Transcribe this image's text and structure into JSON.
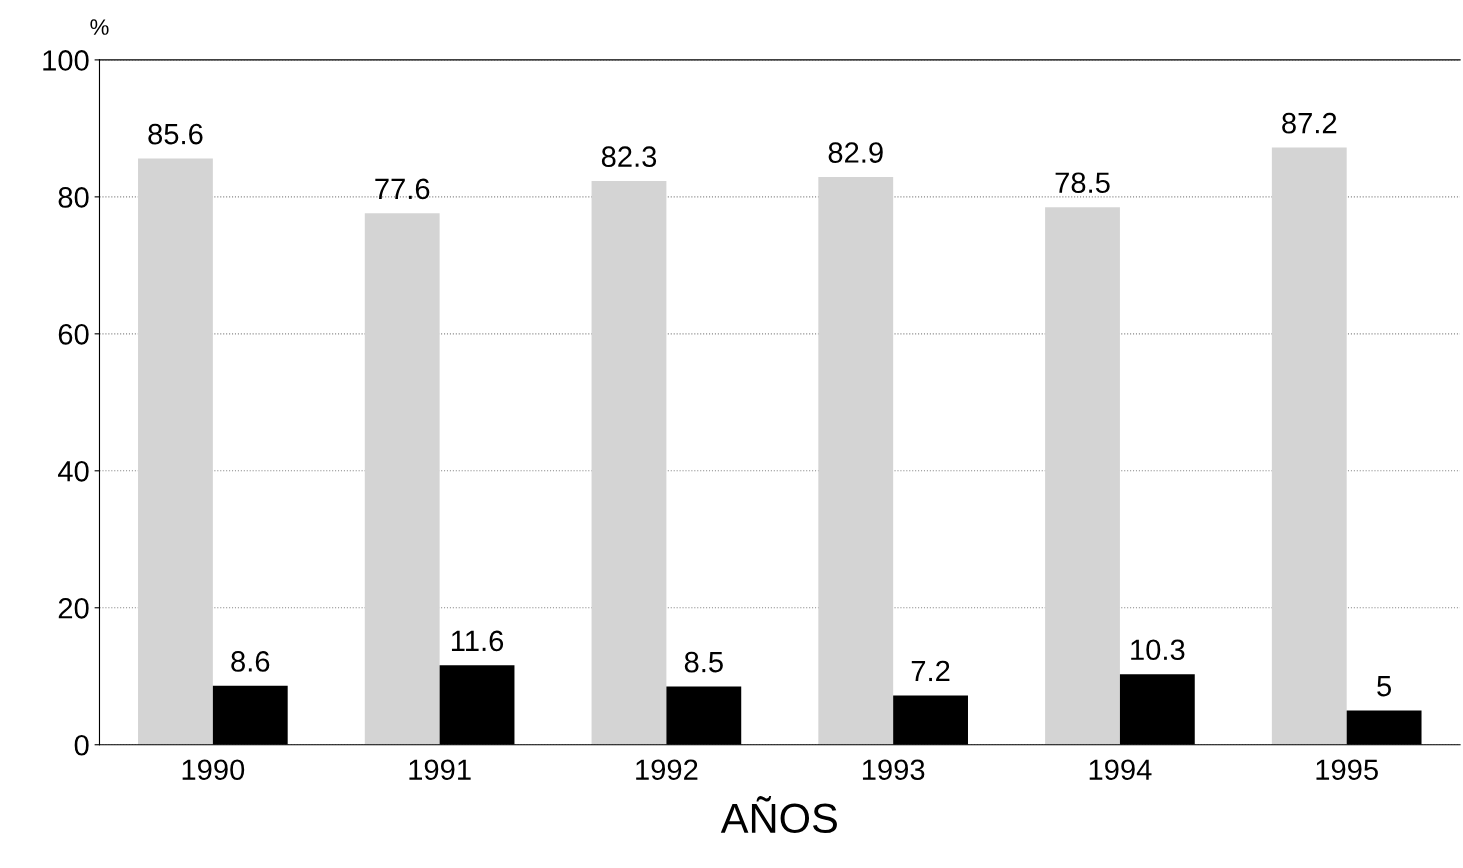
{
  "chart_data": {
    "type": "bar",
    "ylabel": "%",
    "xlabel": "AÑOS",
    "categories": [
      "1990",
      "1991",
      "1992",
      "1993",
      "1994",
      "1995"
    ],
    "series": [
      {
        "color": "#d4d4d4",
        "values": [
          85.6,
          77.6,
          82.3,
          82.9,
          78.5,
          87.2
        ]
      },
      {
        "color": "#000000",
        "values": [
          8.6,
          11.6,
          8.5,
          7.2,
          10.3,
          5
        ]
      }
    ],
    "ylim": [
      0,
      100
    ],
    "yticks": [
      0,
      20,
      40,
      60,
      80,
      100
    ],
    "grid": "y",
    "data_labels": true,
    "legend": false
  }
}
